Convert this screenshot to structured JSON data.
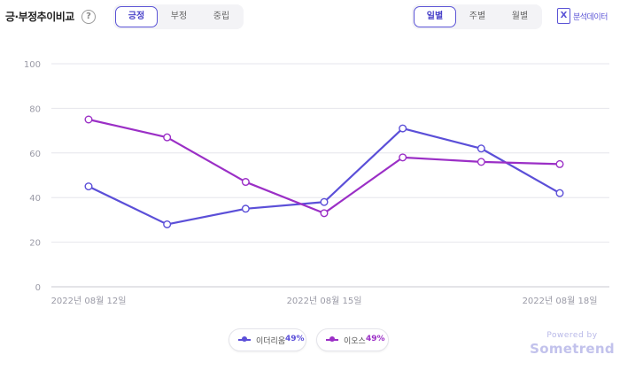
{
  "header": {
    "title": "긍·부정추이비교",
    "help": "?",
    "sentiment_tabs": [
      {
        "label": "긍정",
        "active": true
      },
      {
        "label": "부정",
        "active": false
      },
      {
        "label": "중립",
        "active": false
      }
    ],
    "period_tabs": [
      {
        "label": "일별",
        "active": true
      },
      {
        "label": "주별",
        "active": false
      },
      {
        "label": "월별",
        "active": false
      }
    ],
    "export_label": "분석데이터"
  },
  "legend": [
    {
      "name": "이더리움",
      "value": "49%",
      "color": "#5b4fd8"
    },
    {
      "name": "이오스",
      "value": "49%",
      "color": "#9b2fc6"
    }
  ],
  "brand": {
    "powered": "Powered by",
    "name": "Sometrend"
  },
  "chart_data": {
    "type": "line",
    "x": [
      "2022-08-12",
      "2022-08-13",
      "2022-08-14",
      "2022-08-15",
      "2022-08-16",
      "2022-08-17",
      "2022-08-18"
    ],
    "x_tick_labels": [
      {
        "index": 0,
        "label": "2022년 08월 12일"
      },
      {
        "index": 3,
        "label": "2022년 08월 15일"
      },
      {
        "index": 6,
        "label": "2022년 08월 18일"
      }
    ],
    "y_ticks": [
      0,
      20,
      40,
      60,
      80,
      100
    ],
    "ylim": [
      0,
      100
    ],
    "grid": true,
    "legend_position": "bottom",
    "series": [
      {
        "name": "이더리움",
        "color": "#5b4fd8",
        "values": [
          45,
          28,
          35,
          38,
          71,
          62,
          42
        ]
      },
      {
        "name": "이오스",
        "color": "#9b2fc6",
        "values": [
          75,
          67,
          47,
          33,
          58,
          56,
          55
        ]
      }
    ]
  }
}
